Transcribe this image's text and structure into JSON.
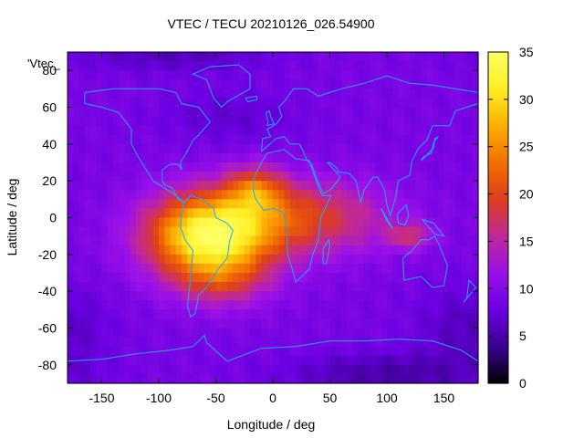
{
  "chart_data": {
    "type": "heatmap",
    "title": "VTEC / TECU 20210126_026.54900",
    "xlabel": "Longitude / deg",
    "ylabel": "Latitude / deg",
    "series_label": "'Vtec_",
    "xlim": [
      -180,
      180
    ],
    "ylim": [
      -90,
      90
    ],
    "x_ticks": [
      -150,
      -100,
      -50,
      0,
      50,
      100,
      150
    ],
    "y_ticks": [
      -80,
      -60,
      -40,
      -20,
      0,
      20,
      40,
      60,
      80
    ],
    "colorbar": {
      "range": [
        0,
        35
      ],
      "ticks": [
        0,
        5,
        10,
        15,
        20,
        25,
        30,
        35
      ],
      "colormap": [
        "#000000",
        "#3a0090",
        "#6a00e0",
        "#9a10ea",
        "#c0289a",
        "#dd3e1e",
        "#f26e00",
        "#fcae00",
        "#ffee22",
        "#ffff60"
      ]
    },
    "grid": false,
    "background_level_tecu": 9,
    "anomalies": [
      {
        "name": "equatorial-south-america",
        "lon": -55,
        "lat": -10,
        "peak_tecu": 25,
        "sigma_lon": 38,
        "sigma_lat": 16
      },
      {
        "name": "west-africa",
        "lon": -15,
        "lat": 15,
        "peak_tecu": 10,
        "sigma_lon": 18,
        "sigma_lat": 9
      },
      {
        "name": "equatorial-band",
        "lon": 30,
        "lat": 0,
        "peak_tecu": 10,
        "sigma_lon": 50,
        "sigma_lat": 14
      },
      {
        "name": "southern-south-atlantic",
        "lon": -45,
        "lat": -35,
        "peak_tecu": 6,
        "sigma_lon": 28,
        "sigma_lat": 10
      },
      {
        "name": "indonesia-tail",
        "lon": 120,
        "lat": -10,
        "peak_tecu": 7,
        "sigma_lon": 14,
        "sigma_lat": 5
      },
      {
        "name": "north-atlantic-low",
        "lon": -40,
        "lat": 55,
        "peak_tecu": -2,
        "sigma_lon": 40,
        "sigma_lat": 10
      },
      {
        "name": "south-pacific-low",
        "lon": 170,
        "lat": -60,
        "peak_tecu": -3,
        "sigma_lon": 30,
        "sigma_lat": 15
      },
      {
        "name": "south-polar-low",
        "lon": 100,
        "lat": -85,
        "peak_tecu": -4,
        "sigma_lon": 60,
        "sigma_lat": 8
      },
      {
        "name": "north-polar-low",
        "lon": -90,
        "lat": 88,
        "peak_tecu": -3,
        "sigma_lon": 60,
        "sigma_lat": 6
      }
    ],
    "coastlines": [
      {
        "name": "north-america",
        "points": [
          [
            -165,
            68
          ],
          [
            -140,
            70
          ],
          [
            -125,
            70
          ],
          [
            -100,
            70
          ],
          [
            -85,
            68
          ],
          [
            -80,
            62
          ],
          [
            -65,
            60
          ],
          [
            -55,
            52
          ],
          [
            -65,
            45
          ],
          [
            -70,
            42
          ],
          [
            -76,
            35
          ],
          [
            -81,
            30
          ],
          [
            -80,
            26
          ],
          [
            -83,
            29
          ],
          [
            -90,
            29
          ],
          [
            -97,
            26
          ],
          [
            -97,
            20
          ],
          [
            -95,
            18
          ],
          [
            -88,
            16
          ],
          [
            -83,
            10
          ],
          [
            -78,
            8
          ],
          [
            -85,
            12
          ],
          [
            -92,
            15
          ],
          [
            -105,
            20
          ],
          [
            -110,
            25
          ],
          [
            -118,
            33
          ],
          [
            -124,
            40
          ],
          [
            -124,
            48
          ],
          [
            -135,
            57
          ],
          [
            -150,
            60
          ],
          [
            -165,
            62
          ],
          [
            -165,
            68
          ]
        ]
      },
      {
        "name": "greenland",
        "points": [
          [
            -55,
            82
          ],
          [
            -30,
            83
          ],
          [
            -20,
            78
          ],
          [
            -20,
            70
          ],
          [
            -40,
            63
          ],
          [
            -45,
            60
          ],
          [
            -52,
            65
          ],
          [
            -58,
            75
          ],
          [
            -70,
            78
          ],
          [
            -55,
            82
          ]
        ]
      },
      {
        "name": "south-america",
        "points": [
          [
            -78,
            8
          ],
          [
            -72,
            12
          ],
          [
            -62,
            10
          ],
          [
            -52,
            5
          ],
          [
            -50,
            0
          ],
          [
            -40,
            -3
          ],
          [
            -35,
            -7
          ],
          [
            -38,
            -13
          ],
          [
            -40,
            -22
          ],
          [
            -48,
            -28
          ],
          [
            -58,
            -38
          ],
          [
            -65,
            -42
          ],
          [
            -68,
            -52
          ],
          [
            -72,
            -54
          ],
          [
            -75,
            -48
          ],
          [
            -73,
            -38
          ],
          [
            -71,
            -25
          ],
          [
            -70,
            -18
          ],
          [
            -77,
            -12
          ],
          [
            -81,
            -5
          ],
          [
            -80,
            0
          ],
          [
            -78,
            8
          ]
        ]
      },
      {
        "name": "africa",
        "points": [
          [
            -17,
            21
          ],
          [
            -10,
            30
          ],
          [
            -5,
            35
          ],
          [
            10,
            37
          ],
          [
            20,
            32
          ],
          [
            32,
            31
          ],
          [
            35,
            25
          ],
          [
            43,
            12
          ],
          [
            51,
            12
          ],
          [
            42,
            0
          ],
          [
            40,
            -12
          ],
          [
            35,
            -20
          ],
          [
            32,
            -28
          ],
          [
            20,
            -35
          ],
          [
            18,
            -30
          ],
          [
            13,
            -20
          ],
          [
            12,
            -6
          ],
          [
            9,
            3
          ],
          [
            0,
            5
          ],
          [
            -8,
            4
          ],
          [
            -15,
            10
          ],
          [
            -17,
            14
          ],
          [
            -17,
            21
          ]
        ]
      },
      {
        "name": "europe-asia",
        "points": [
          [
            -10,
            36
          ],
          [
            -9,
            43
          ],
          [
            -2,
            44
          ],
          [
            -5,
            48
          ],
          [
            3,
            51
          ],
          [
            8,
            55
          ],
          [
            5,
            60
          ],
          [
            10,
            63
          ],
          [
            18,
            70
          ],
          [
            30,
            70
          ],
          [
            40,
            66
          ],
          [
            60,
            70
          ],
          [
            80,
            73
          ],
          [
            100,
            77
          ],
          [
            120,
            73
          ],
          [
            140,
            72
          ],
          [
            160,
            70
          ],
          [
            180,
            68
          ],
          [
            180,
            62
          ],
          [
            170,
            60
          ],
          [
            160,
            58
          ],
          [
            155,
            50
          ],
          [
            140,
            50
          ],
          [
            135,
            42
          ],
          [
            128,
            38
          ],
          [
            122,
            31
          ],
          [
            120,
            23
          ],
          [
            110,
            20
          ],
          [
            108,
            12
          ],
          [
            103,
            1
          ],
          [
            100,
            7
          ],
          [
            98,
            15
          ],
          [
            92,
            22
          ],
          [
            88,
            22
          ],
          [
            80,
            15
          ],
          [
            77,
            8
          ],
          [
            73,
            20
          ],
          [
            67,
            24
          ],
          [
            57,
            25
          ],
          [
            56,
            27
          ],
          [
            50,
            30
          ],
          [
            48,
            30
          ],
          [
            55,
            25
          ],
          [
            59,
            22
          ],
          [
            52,
            16
          ],
          [
            44,
            13
          ],
          [
            38,
            22
          ],
          [
            34,
            29
          ],
          [
            30,
            31
          ],
          [
            26,
            37
          ],
          [
            23,
            40
          ],
          [
            15,
            40
          ],
          [
            10,
            44
          ],
          [
            3,
            43
          ],
          [
            -10,
            36
          ]
        ]
      },
      {
        "name": "australia",
        "points": [
          [
            114,
            -22
          ],
          [
            115,
            -34
          ],
          [
            130,
            -32
          ],
          [
            140,
            -38
          ],
          [
            150,
            -37
          ],
          [
            153,
            -26
          ],
          [
            146,
            -15
          ],
          [
            142,
            -10
          ],
          [
            137,
            -12
          ],
          [
            130,
            -12
          ],
          [
            122,
            -18
          ],
          [
            114,
            -22
          ]
        ]
      },
      {
        "name": "antarctica",
        "points": [
          [
            -180,
            -78
          ],
          [
            -150,
            -77
          ],
          [
            -120,
            -74
          ],
          [
            -90,
            -72
          ],
          [
            -70,
            -70
          ],
          [
            -60,
            -64
          ],
          [
            -58,
            -68
          ],
          [
            -40,
            -78
          ],
          [
            -10,
            -71
          ],
          [
            20,
            -70
          ],
          [
            50,
            -67
          ],
          [
            80,
            -67
          ],
          [
            110,
            -66
          ],
          [
            140,
            -67
          ],
          [
            165,
            -72
          ],
          [
            180,
            -78
          ]
        ]
      },
      {
        "name": "madagascar",
        "points": [
          [
            44,
            -25
          ],
          [
            47,
            -25
          ],
          [
            50,
            -15
          ],
          [
            49,
            -12
          ],
          [
            44,
            -17
          ],
          [
            44,
            -25
          ]
        ]
      },
      {
        "name": "japan",
        "points": [
          [
            130,
            31
          ],
          [
            135,
            34
          ],
          [
            141,
            38
          ],
          [
            142,
            43
          ],
          [
            145,
            44
          ],
          [
            141,
            41
          ],
          [
            139,
            35
          ],
          [
            132,
            33
          ],
          [
            130,
            31
          ]
        ]
      },
      {
        "name": "uk",
        "points": [
          [
            -5,
            50
          ],
          [
            1,
            51
          ],
          [
            -2,
            55
          ],
          [
            -3,
            58
          ],
          [
            -6,
            57
          ],
          [
            -5,
            54
          ],
          [
            -4,
            52
          ],
          [
            -5,
            50
          ]
        ]
      },
      {
        "name": "new-guinea",
        "points": [
          [
            131,
            -1
          ],
          [
            141,
            -3
          ],
          [
            150,
            -10
          ],
          [
            142,
            -9
          ],
          [
            135,
            -4
          ],
          [
            131,
            -1
          ]
        ]
      },
      {
        "name": "borneo",
        "points": [
          [
            109,
            2
          ],
          [
            117,
            7
          ],
          [
            119,
            1
          ],
          [
            116,
            -4
          ],
          [
            110,
            -3
          ],
          [
            109,
            2
          ]
        ]
      },
      {
        "name": "sumatra",
        "points": [
          [
            95,
            5
          ],
          [
            105,
            -6
          ],
          [
            100,
            -2
          ],
          [
            95,
            5
          ]
        ]
      },
      {
        "name": "new-zealand",
        "points": [
          [
            172,
            -34
          ],
          [
            178,
            -38
          ],
          [
            174,
            -41
          ],
          [
            167,
            -46
          ],
          [
            170,
            -44
          ],
          [
            172,
            -34
          ]
        ]
      },
      {
        "name": "iceland",
        "points": [
          [
            -24,
            65
          ],
          [
            -14,
            66
          ],
          [
            -14,
            64
          ],
          [
            -22,
            63
          ],
          [
            -24,
            65
          ]
        ]
      }
    ]
  }
}
